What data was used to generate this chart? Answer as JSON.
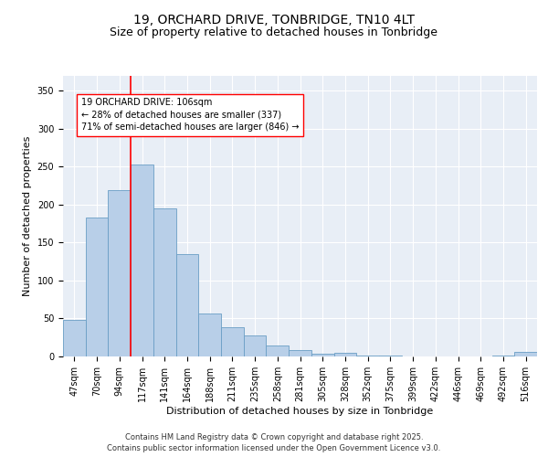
{
  "title_line1": "19, ORCHARD DRIVE, TONBRIDGE, TN10 4LT",
  "title_line2": "Size of property relative to detached houses in Tonbridge",
  "xlabel": "Distribution of detached houses by size in Tonbridge",
  "ylabel": "Number of detached properties",
  "categories": [
    "47sqm",
    "70sqm",
    "94sqm",
    "117sqm",
    "141sqm",
    "164sqm",
    "188sqm",
    "211sqm",
    "235sqm",
    "258sqm",
    "281sqm",
    "305sqm",
    "328sqm",
    "352sqm",
    "375sqm",
    "399sqm",
    "422sqm",
    "446sqm",
    "469sqm",
    "492sqm",
    "516sqm"
  ],
  "bar_values": [
    48,
    183,
    219,
    253,
    195,
    135,
    57,
    38,
    28,
    15,
    8,
    4,
    5,
    1,
    1,
    0,
    0,
    0,
    0,
    1,
    6
  ],
  "bar_color": "#b8cfe8",
  "bar_edge_color": "#6a9ec5",
  "bar_edge_width": 0.6,
  "vline_color": "red",
  "vline_x": 2.5,
  "annotation_text": "19 ORCHARD DRIVE: 106sqm\n← 28% of detached houses are smaller (337)\n71% of semi-detached houses are larger (846) →",
  "annotation_box_color": "white",
  "annotation_box_edge_color": "red",
  "ylim": [
    0,
    370
  ],
  "yticks": [
    0,
    50,
    100,
    150,
    200,
    250,
    300,
    350
  ],
  "background_color": "#e8eef6",
  "grid_color": "white",
  "footer_text": "Contains HM Land Registry data © Crown copyright and database right 2025.\nContains public sector information licensed under the Open Government Licence v3.0.",
  "title_fontsize": 10,
  "subtitle_fontsize": 9,
  "label_fontsize": 8,
  "tick_fontsize": 7,
  "footer_fontsize": 6,
  "annot_fontsize": 7
}
